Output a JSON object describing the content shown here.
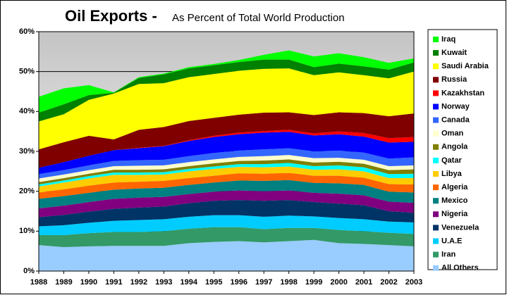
{
  "chart_data": {
    "type": "stacked_area",
    "title": "Oil Exports -",
    "subtitle": "As Percent of Total World Production",
    "x": [
      1988,
      1989,
      1990,
      1991,
      1992,
      1993,
      1994,
      1995,
      1996,
      1997,
      1998,
      1999,
      2000,
      2001,
      2002,
      2003
    ],
    "xlim": [
      1988,
      2003
    ],
    "ylim": [
      0,
      60
    ],
    "yticks": [
      {
        "value": 0,
        "label": "0%"
      },
      {
        "value": 10,
        "label": "10%"
      },
      {
        "value": 20,
        "label": "20%"
      },
      {
        "value": 30,
        "label": "30%"
      },
      {
        "value": 40,
        "label": "40%"
      },
      {
        "value": 50,
        "label": "50%"
      },
      {
        "value": 60,
        "label": "60%"
      }
    ],
    "grid": true,
    "legend": "right",
    "series": [
      {
        "name": "All Others",
        "color": "#99ccff",
        "values": [
          6.5,
          6.0,
          6.2,
          6.3,
          6.3,
          6.3,
          7.0,
          7.3,
          7.5,
          7.2,
          7.5,
          7.8,
          7.0,
          6.8,
          6.5,
          6.2
        ]
      },
      {
        "name": "Iran",
        "color": "#339966",
        "values": [
          2.5,
          3.0,
          3.3,
          3.5,
          3.5,
          3.7,
          3.6,
          3.7,
          3.5,
          3.3,
          3.3,
          3.0,
          3.3,
          3.2,
          3.1,
          3.1
        ]
      },
      {
        "name": "U.A.E",
        "color": "#00ccff",
        "values": [
          2.2,
          2.5,
          2.6,
          2.8,
          3.0,
          3.0,
          3.0,
          3.0,
          3.0,
          3.1,
          3.1,
          2.9,
          3.0,
          3.0,
          2.8,
          2.9
        ]
      },
      {
        "name": "Venezuela",
        "color": "#003366",
        "values": [
          2.3,
          2.6,
          2.8,
          3.0,
          3.1,
          3.2,
          3.4,
          3.6,
          3.8,
          4.0,
          3.9,
          3.6,
          3.6,
          3.5,
          2.6,
          2.4
        ]
      },
      {
        "name": "Nigeria",
        "color": "#800080",
        "values": [
          2.2,
          2.3,
          2.4,
          2.5,
          2.5,
          2.4,
          2.3,
          2.3,
          2.4,
          2.4,
          2.4,
          2.3,
          2.5,
          2.5,
          2.4,
          2.5
        ]
      },
      {
        "name": "Mexico",
        "color": "#008080",
        "values": [
          2.4,
          2.4,
          2.3,
          2.3,
          2.3,
          2.3,
          2.3,
          2.3,
          2.5,
          2.6,
          2.6,
          2.5,
          2.6,
          2.6,
          2.5,
          2.6
        ]
      },
      {
        "name": "Algeria",
        "color": "#ff6600",
        "values": [
          1.6,
          1.7,
          1.8,
          1.8,
          1.7,
          1.7,
          1.7,
          1.7,
          1.8,
          1.8,
          1.8,
          1.8,
          1.9,
          1.8,
          1.9,
          2.0
        ]
      },
      {
        "name": "Libya",
        "color": "#ffcc00",
        "values": [
          1.5,
          1.7,
          1.8,
          1.9,
          1.7,
          1.6,
          1.7,
          1.7,
          1.6,
          1.6,
          1.6,
          1.5,
          1.6,
          1.6,
          1.5,
          1.6
        ]
      },
      {
        "name": "Qatar",
        "color": "#00ffff",
        "values": [
          0.5,
          0.5,
          0.6,
          0.6,
          0.6,
          0.6,
          0.6,
          0.6,
          0.7,
          0.8,
          0.9,
          0.9,
          1.0,
          1.0,
          1.0,
          1.1
        ]
      },
      {
        "name": "Angola",
        "color": "#808000",
        "values": [
          0.6,
          0.6,
          0.6,
          0.7,
          0.7,
          0.7,
          0.7,
          0.8,
          0.8,
          0.9,
          0.9,
          0.9,
          0.9,
          0.9,
          1.0,
          1.1
        ]
      },
      {
        "name": "Oman",
        "color": "#ffffcc",
        "values": [
          0.9,
          0.9,
          0.9,
          0.9,
          1.0,
          1.0,
          1.0,
          1.0,
          1.0,
          1.1,
          1.1,
          1.1,
          1.0,
          1.0,
          1.0,
          1.0
        ]
      },
      {
        "name": "Canada",
        "color": "#3366ff",
        "values": [
          1.1,
          1.1,
          1.2,
          1.3,
          1.4,
          1.4,
          1.5,
          1.6,
          1.6,
          1.7,
          1.7,
          1.7,
          1.8,
          1.8,
          1.9,
          2.0
        ]
      },
      {
        "name": "Norway",
        "color": "#0000ff",
        "values": [
          1.6,
          2.0,
          2.4,
          2.7,
          3.0,
          3.4,
          3.8,
          4.0,
          4.1,
          4.2,
          4.1,
          4.0,
          4.1,
          4.0,
          4.0,
          3.9
        ]
      },
      {
        "name": "Kazakhstan",
        "color": "#ff0000",
        "values": [
          0,
          0,
          0,
          0,
          0.1,
          0.1,
          0.2,
          0.3,
          0.4,
          0.4,
          0.5,
          0.5,
          0.7,
          0.9,
          1.1,
          1.2
        ]
      },
      {
        "name": "Russia",
        "color": "#800000",
        "values": [
          4.6,
          5.0,
          5.0,
          2.7,
          4.5,
          4.7,
          4.8,
          4.5,
          4.5,
          4.6,
          4.4,
          4.6,
          4.8,
          5.0,
          5.5,
          5.9
        ]
      },
      {
        "name": "Saudi Arabia",
        "color": "#ffff00",
        "values": [
          7.0,
          7.0,
          9.0,
          11.5,
          11.5,
          11.0,
          11.0,
          11.0,
          11.0,
          11.0,
          11.0,
          10.0,
          10.0,
          9.5,
          9.5,
          10.5
        ]
      },
      {
        "name": "Kuwait",
        "color": "#008000",
        "values": [
          2.2,
          2.5,
          1.2,
          0.2,
          1.5,
          2.2,
          2.2,
          2.2,
          2.2,
          2.3,
          2.2,
          2.0,
          2.2,
          2.2,
          2.2,
          2.3
        ]
      },
      {
        "name": "Iraq",
        "color": "#00ff00",
        "values": [
          4.0,
          4.0,
          2.5,
          0.1,
          0.2,
          0.2,
          0.3,
          0.3,
          0.5,
          1.2,
          2.3,
          2.7,
          2.6,
          2.3,
          1.7,
          1.0
        ]
      }
    ]
  }
}
